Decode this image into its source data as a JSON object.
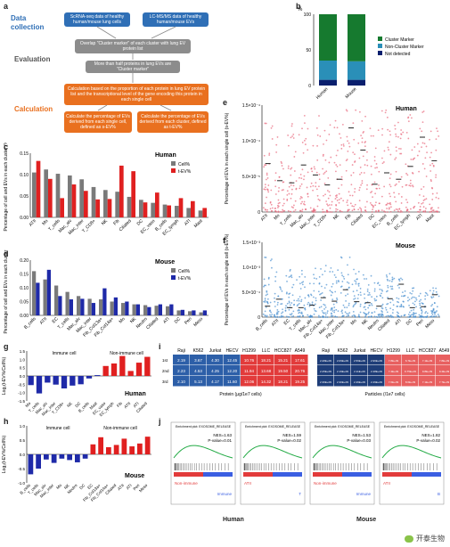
{
  "panels": {
    "a": {
      "label": "a",
      "stages": {
        "data_collection": "Data\ncollection",
        "evaluation": "Evaluation",
        "calculation": "Calculation"
      },
      "boxes": {
        "scrnaseq": "ScRNA-seq data of healthy human/mouse lung cells",
        "lcmsms": "LC-MS/MS data of healthy human/mouse EVs",
        "overlap": "Overlap \"Cluster marker\" of each cluster with lung EV protein list",
        "more_than_half": "More than half proteins in lung EVs are \"Cluster marker\"",
        "calc_basis": "Calculation based on the proportion of each protein in lung EV protein list and the transcriptional level of the gene encoding this protein in each single cell",
        "s_ev": "Calculate the percentage of EVs derived from each single cell, defined as s-EV%",
        "t_ev": "Calculate the percentage of EVs derived from each cluster, defined as t-EV%"
      }
    },
    "b": {
      "label": "b"
    },
    "c": {
      "label": "c"
    },
    "d": {
      "label": "d"
    },
    "e": {
      "label": "e"
    },
    "f": {
      "label": "f"
    },
    "g": {
      "label": "g"
    },
    "h": {
      "label": "h"
    },
    "i": {
      "label": "i"
    },
    "j": {
      "label": "j"
    }
  },
  "chart_data": [
    {
      "id": "b",
      "type": "bar",
      "stacked": true,
      "categories": [
        "Human",
        "Mouse"
      ],
      "ylabel": "%",
      "ylim": [
        0,
        100
      ],
      "series": [
        {
          "name": "Not detected",
          "color": "#0a1f6e",
          "values": [
            8,
            8
          ]
        },
        {
          "name": "Non-Cluster Marker",
          "color": "#2a8fb8",
          "values": [
            27,
            26
          ]
        },
        {
          "name": "Cluster Marker",
          "color": "#167a2f",
          "values": [
            65,
            66
          ]
        }
      ],
      "legend_position": "right"
    },
    {
      "id": "c",
      "type": "bar",
      "title": "Human",
      "ylabel": "Percentage of cell and EVs in each cluster (%)",
      "ylim": [
        0,
        0.15
      ],
      "yticks": [
        "0.00",
        "0.05",
        "0.10",
        "0.15"
      ],
      "categories": [
        "ATII",
        "Mo",
        "T_cells",
        "Mac_alv",
        "Mac_inter",
        "T_CD8+",
        "NK",
        "Fib",
        "Ciliated",
        "DC",
        "EC_vaso",
        "B_cells",
        "EC_lymph",
        "ATI",
        "Mast"
      ],
      "series": [
        {
          "name": "Cell%",
          "color": "#7a7a7a",
          "values": [
            0.105,
            0.112,
            0.102,
            0.098,
            0.089,
            0.071,
            0.064,
            0.06,
            0.048,
            0.041,
            0.034,
            0.03,
            0.027,
            0.022,
            0.016
          ]
        },
        {
          "name": "t-EV%",
          "color": "#e02020",
          "values": [
            0.132,
            0.09,
            0.045,
            0.077,
            0.062,
            0.042,
            0.043,
            0.121,
            0.108,
            0.035,
            0.058,
            0.028,
            0.045,
            0.038,
            0.022
          ]
        }
      ],
      "legend_position": "top-right"
    },
    {
      "id": "d",
      "type": "bar",
      "title": "Mouse",
      "ylabel": "Percentage of cell and EVs in each cluster (%)",
      "ylim": [
        0,
        0.2
      ],
      "yticks": [
        "0.00",
        "0.05",
        "0.10",
        "0.15",
        "0.20"
      ],
      "categories": [
        "B_cells",
        "ATII",
        "EC",
        "T_cells",
        "Mac_alv",
        "Mac_inter",
        "Fib_Col13a+",
        "Fib_Col14a+",
        "Mo",
        "NK",
        "Neutro",
        "Ciliated",
        "ATI",
        "DC",
        "Peri",
        "Meso"
      ],
      "series": [
        {
          "name": "Cell%",
          "color": "#7a7a7a",
          "values": [
            0.16,
            0.13,
            0.108,
            0.085,
            0.07,
            0.06,
            0.058,
            0.05,
            0.045,
            0.04,
            0.037,
            0.035,
            0.033,
            0.018,
            0.015,
            0.011
          ]
        },
        {
          "name": "t-EV%",
          "color": "#1f2aa8",
          "values": [
            0.118,
            0.165,
            0.07,
            0.058,
            0.06,
            0.045,
            0.098,
            0.065,
            0.05,
            0.04,
            0.03,
            0.04,
            0.04,
            0.02,
            0.018,
            0.018
          ]
        }
      ],
      "legend_position": "top-right"
    },
    {
      "id": "e",
      "type": "scatter",
      "title": "Human",
      "ylabel": "Percentage of EVs in each single cell (s-EV%)",
      "yticks": [
        "0",
        "5.0×10⁻⁵",
        "1.0×10⁻⁴",
        "1.5×10⁻⁴"
      ],
      "ylim": [
        0,
        0.00015
      ],
      "categories": [
        "ATII",
        "Mo",
        "T_cells",
        "Mac_alv",
        "Mac_inter",
        "T_CD8+",
        "NK",
        "Fib",
        "Ciliated",
        "DC",
        "EC_vaso",
        "B_cells",
        "EC_lymph",
        "ATI",
        "Mast"
      ],
      "means": [
        6.8e-05,
        4.4e-05,
        4.1e-05,
        6.6e-05,
        5.2e-05,
        3.8e-05,
        4.6e-05,
        0.000118,
        8.7e-05,
        3.9e-05,
        5.5e-05,
        4.6e-05,
        6.4e-05,
        0.000105,
        7.2e-05
      ],
      "spread_max": [
        0.000135,
        0.000128,
        0.00013,
        0.000145,
        0.000145,
        0.00013,
        0.00013,
        0.000149,
        0.000147,
        0.000125,
        0.000145,
        0.00013,
        0.00014,
        0.000145,
        0.00012
      ],
      "color": "#e8677a"
    },
    {
      "id": "f",
      "type": "scatter",
      "title": "Mouse",
      "ylabel": "Percentage of EVs in each single cell (s-EV%)",
      "yticks": [
        "0",
        "5.0×10⁻⁴",
        "1.0×10⁻³",
        "1.5×10⁻³"
      ],
      "ylim": [
        0,
        0.0015
      ],
      "categories": [
        "B_cells",
        "ATII",
        "EC",
        "T_cells",
        "Mac_alv",
        "Fib_Col14a+",
        "Mac_inter",
        "Fib_Col13a+",
        "Mo",
        "NK",
        "Neutro",
        "Ciliated",
        "ATI",
        "DC",
        "Peri",
        "Meso"
      ],
      "means": [
        0.00022,
        0.00036,
        0.00019,
        0.00019,
        0.00024,
        0.00039,
        0.00032,
        0.00055,
        0.00031,
        0.00029,
        0.00022,
        0.00037,
        0.00066,
        0.00019,
        0.00021,
        0.00045
      ],
      "spread_max": [
        0.0013,
        0.0011,
        0.001,
        0.001,
        0.00105,
        0.0011,
        0.001,
        0.00125,
        0.001,
        0.0009,
        0.0007,
        0.0009,
        0.0008,
        0.0006,
        0.0005,
        0.0006
      ],
      "color": "#4a90d0"
    },
    {
      "id": "g",
      "type": "bar",
      "title": "Human",
      "ylabel": "Log₂(t-EV%/Cell%)",
      "ylim": [
        -1.5,
        1.5
      ],
      "yticks": [
        "-1.5",
        "-1.0",
        "-0.5",
        "0.0",
        "0.5",
        "1.0",
        "1.5"
      ],
      "groups": [
        "Immune cell",
        "Non-immune cell"
      ],
      "categories": [
        "Mo",
        "T_cells",
        "Mac_alv",
        "Mac_inter",
        "T_CD8+",
        "NK",
        "DC",
        "B_cells",
        "Mast",
        "EC_vaso",
        "EC_lymph",
        "Fib",
        "ATII",
        "ATI",
        "Ciliated"
      ],
      "values": [
        -0.55,
        -1.05,
        -0.4,
        -0.52,
        -0.75,
        -0.58,
        -0.5,
        -0.15,
        0.05,
        0.6,
        0.75,
        1.2,
        0.3,
        0.8,
        1.15
      ],
      "colors": [
        "#1f2aa8",
        "#1f2aa8",
        "#1f2aa8",
        "#1f2aa8",
        "#1f2aa8",
        "#1f2aa8",
        "#1f2aa8",
        "#1f2aa8",
        "#1f2aa8",
        "#e02020",
        "#e02020",
        "#e02020",
        "#e02020",
        "#e02020",
        "#e02020"
      ]
    },
    {
      "id": "h",
      "type": "bar",
      "title": "Mouse",
      "ylabel": "Log₂(t-EV%/Cell%)",
      "ylim": [
        -1.0,
        1.0
      ],
      "yticks": [
        "-1.0",
        "-0.5",
        "0.0",
        "0.5",
        "1.0"
      ],
      "groups": [
        "Immune cell",
        "Non-immune cell"
      ],
      "categories": [
        "B_cells",
        "T_cells",
        "Mac_alv",
        "Mac_inter",
        "Mo",
        "NK",
        "Neutro",
        "DC",
        "EC",
        "Fib_Col13a+",
        "Fib_Col14a+",
        "Ciliated",
        "ATII",
        "ATI",
        "Peri",
        "Meso"
      ],
      "values": [
        -0.7,
        -0.5,
        -0.18,
        -0.3,
        -0.15,
        -0.2,
        -0.28,
        -0.15,
        0.35,
        0.6,
        0.25,
        0.33,
        0.55,
        0.28,
        0.38,
        0.62
      ],
      "colors": [
        "#1f2aa8",
        "#1f2aa8",
        "#1f2aa8",
        "#1f2aa8",
        "#1f2aa8",
        "#1f2aa8",
        "#1f2aa8",
        "#1f2aa8",
        "#e02020",
        "#e02020",
        "#e02020",
        "#e02020",
        "#e02020",
        "#e02020",
        "#e02020",
        "#e02020"
      ]
    },
    {
      "id": "i",
      "type": "heatmap",
      "columns": [
        "Raji",
        "K562",
        "Jurkat",
        "HECV",
        "H1299",
        "LLC",
        "HCC827",
        "A549"
      ],
      "row_labels": [
        "1st",
        "2nd",
        "3rd"
      ],
      "left": {
        "xlabel": "Protein (μg/1e7 cells)",
        "values": [
          [
            "2.19",
            "3.67",
            "4.30",
            "12.45",
            "10.76",
            "18.21",
            "15.21",
            "17.61"
          ],
          [
            "2.23",
            "4.53",
            "4.25",
            "12.20",
            "11.94",
            "13.68",
            "19.50",
            "20.76"
          ],
          [
            "2.10",
            "5.13",
            "4.17",
            "11.60",
            "12.06",
            "14.32",
            "18.21",
            "19.25"
          ]
        ]
      },
      "right": {
        "xlabel": "Particles (/1e7 cells)",
        "values": [
          [
            "2.28E+09",
            "2.09E+09",
            "2.56E+09",
            "2.96E+09",
            "7.8E+09",
            "6.7E+09",
            "7.1E+09",
            "7.8E+09"
          ],
          [
            "2.25E+09",
            "2.19E+09",
            "2.11E+09",
            "2.48E+09",
            "7.4E+09",
            "9.75E+09",
            "9.8E+09",
            "9.4E+09"
          ],
          [
            "2.36E+09",
            "2.30E+09",
            "2.46E+09",
            "2.49E+09",
            "7.6E+09",
            "8.6E+09",
            "7.1E+09",
            "7.7E+09"
          ]
        ]
      }
    },
    {
      "id": "j",
      "type": "line",
      "title_small": "Enrichment plot: EXOSOME_RELEASE",
      "panels": [
        {
          "species": "Human",
          "stats": "NES=1.63\nP-value=0.01",
          "left": "Non-immune",
          "right": "Immune",
          "marker": "ATII"
        },
        {
          "species": "Human",
          "stats": "NES=1.59\nP-value=0.02",
          "left": "ATII",
          "right": "T",
          "marker": ""
        },
        {
          "species": "Mouse",
          "stats": "NES=1.53\nP-value=0.03",
          "left": "Non-immune",
          "right": "Immune",
          "marker": "ATII"
        },
        {
          "species": "Mouse",
          "stats": "NES=1.82\nP-value=0.02",
          "left": "ATII",
          "right": "B",
          "marker": ""
        }
      ],
      "captions": {
        "human": "Human",
        "mouse": "Mouse"
      }
    }
  ],
  "watermark": "开泰生物"
}
